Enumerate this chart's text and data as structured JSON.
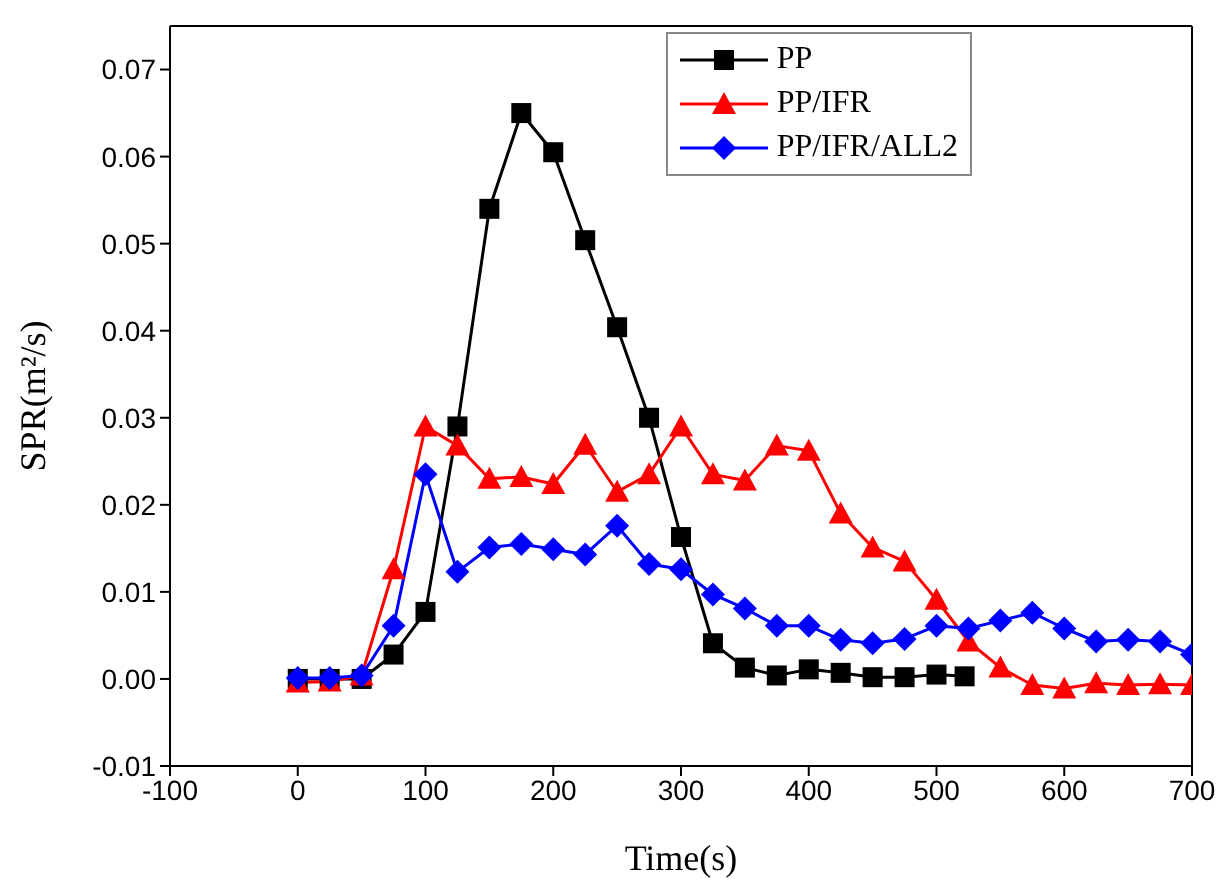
{
  "chart_data": {
    "type": "line",
    "xlabel": "Time(s)",
    "ylabel": "SPR(m²/s)",
    "xlim": [
      -100,
      700
    ],
    "ylim": [
      -0.01,
      0.075
    ],
    "xticks": [
      -100,
      0,
      100,
      200,
      300,
      400,
      500,
      600,
      700
    ],
    "yticks": [
      -0.01,
      {
        "value": 0,
        "label": "0.00"
      },
      0.01,
      0.02,
      0.03,
      0.04,
      0.05,
      0.06,
      0.07
    ],
    "legend": "top right",
    "series": [
      {
        "name": "PP",
        "color": "#000000",
        "marker": "square",
        "x": [
          0,
          25,
          50,
          75,
          100,
          125,
          150,
          175,
          200,
          225,
          250,
          275,
          300,
          325,
          350,
          375,
          400,
          425,
          450,
          475,
          500,
          522
        ],
        "values": [
          0,
          0,
          0,
          0.0028,
          0.0077,
          0.029,
          0.054,
          0.065,
          0.0605,
          0.0504,
          0.0404,
          0.03,
          0.0163,
          0.0041,
          0.0013,
          0.0004,
          0.0011,
          0.0007,
          0.0002,
          0.0002,
          0.0005,
          0.0003
        ]
      },
      {
        "name": "PP/IFR",
        "color": "#ff0000",
        "marker": "triangle",
        "x": [
          0,
          25,
          50,
          75,
          100,
          125,
          150,
          175,
          200,
          225,
          250,
          275,
          300,
          325,
          350,
          375,
          400,
          425,
          450,
          475,
          500,
          525,
          550,
          575,
          600,
          625,
          650,
          675,
          700
        ],
        "values": [
          -0.0004,
          -0.0003,
          0.0004,
          0.0126,
          0.029,
          0.0268,
          0.023,
          0.0232,
          0.0224,
          0.0269,
          0.0215,
          0.0235,
          0.029,
          0.0235,
          0.0228,
          0.0268,
          0.0262,
          0.019,
          0.0151,
          0.0135,
          0.0091,
          0.0043,
          0.0013,
          -0.0007,
          -0.0011,
          -0.0005,
          -0.0007,
          -0.0006,
          -0.0007
        ]
      },
      {
        "name": "PP/IFR/ALL2",
        "color": "#0000ff",
        "marker": "diamond",
        "x": [
          0,
          25,
          50,
          75,
          100,
          125,
          150,
          175,
          200,
          225,
          250,
          275,
          300,
          325,
          350,
          375,
          400,
          425,
          450,
          475,
          500,
          525,
          550,
          575,
          600,
          625,
          650,
          675,
          700
        ],
        "values": [
          0.0001,
          0.0001,
          0.0004,
          0.0061,
          0.0235,
          0.0123,
          0.0151,
          0.0155,
          0.0149,
          0.0143,
          0.0176,
          0.0132,
          0.0126,
          0.0097,
          0.0081,
          0.0061,
          0.0061,
          0.0045,
          0.0041,
          0.0046,
          0.0061,
          0.0058,
          0.0067,
          0.0076,
          0.0058,
          0.0043,
          0.0045,
          0.0043,
          0.0028
        ]
      }
    ]
  }
}
